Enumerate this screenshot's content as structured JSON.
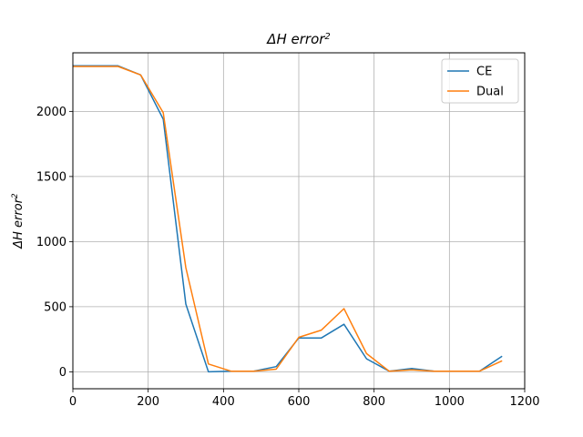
{
  "chart_data": {
    "type": "line",
    "title": {
      "base": "ΔH error",
      "sup": "2"
    },
    "xlabel": "",
    "ylabel": {
      "base": "ΔH error",
      "sup": "2"
    },
    "xlim": [
      0,
      1200
    ],
    "ylim": [
      -130,
      2450
    ],
    "xticks": [
      0,
      200,
      400,
      600,
      800,
      1000,
      1200
    ],
    "yticks": [
      0,
      500,
      1000,
      1500,
      2000
    ],
    "grid": true,
    "legend_position": "top-right",
    "x": [
      0,
      60,
      120,
      180,
      240,
      300,
      360,
      420,
      480,
      540,
      600,
      660,
      720,
      780,
      840,
      900,
      960,
      1020,
      1080,
      1140
    ],
    "series": [
      {
        "name": "CE",
        "color": "#1f77b4",
        "values": [
          2350,
          2350,
          2350,
          2280,
          1940,
          520,
          0,
          5,
          5,
          40,
          260,
          260,
          365,
          100,
          5,
          25,
          5,
          5,
          5,
          120
        ]
      },
      {
        "name": "Dual",
        "color": "#ff7f0e",
        "values": [
          2345,
          2345,
          2345,
          2280,
          1990,
          800,
          60,
          5,
          5,
          20,
          265,
          320,
          485,
          140,
          5,
          15,
          5,
          5,
          5,
          85
        ]
      }
    ]
  }
}
